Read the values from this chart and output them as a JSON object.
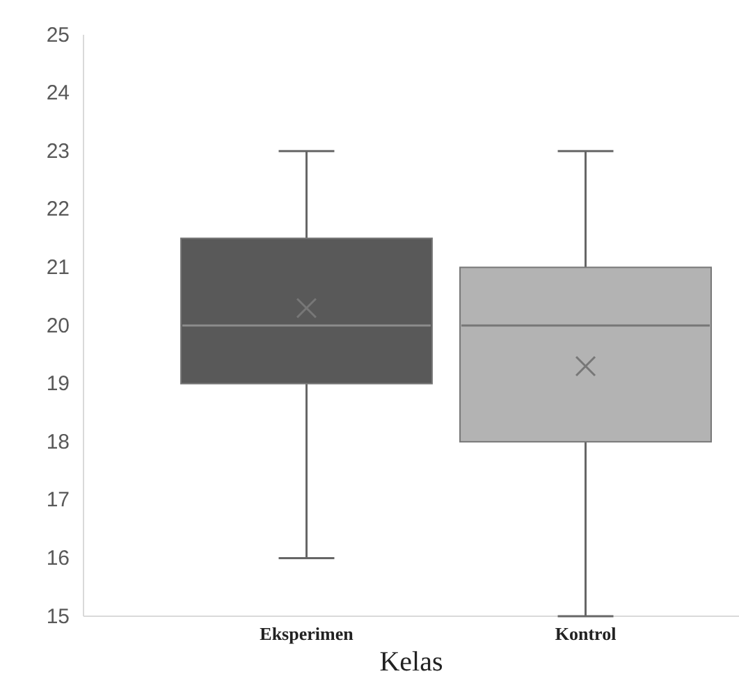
{
  "chart_data": {
    "type": "box",
    "categories": [
      "Eksperimen",
      "Kontrol"
    ],
    "xlabel": "Kelas",
    "boxes": [
      {
        "low": 16,
        "q1": 19,
        "median": 20,
        "q3": 21.5,
        "high": 23,
        "mean": 20.3
      },
      {
        "low": 15,
        "q1": 18,
        "median": 20,
        "q3": 21,
        "high": 23,
        "mean": 19.3
      }
    ],
    "colors": [
      "#595959",
      "#b3b3b3"
    ],
    "ylim": [
      15,
      25
    ],
    "yticks": [
      15,
      16,
      17,
      18,
      19,
      20,
      21,
      22,
      23,
      24,
      25
    ],
    "grid": false,
    "marker": "cross"
  }
}
